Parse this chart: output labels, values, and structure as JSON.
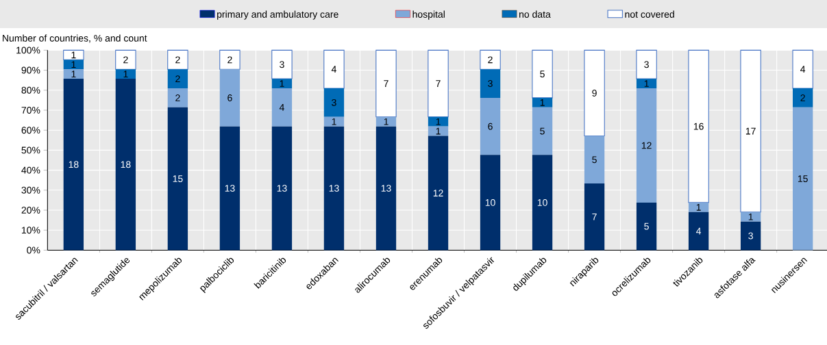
{
  "chart_data": {
    "type": "bar",
    "stacked": true,
    "ylabel": "Number of countries, %  and count",
    "categories": [
      "sacubitril / valsartan",
      "semaglutide",
      "mepolizumab",
      "palbociclib",
      "baricitinib",
      "edoxaban",
      "alirocumab",
      "erenumab",
      "sofosbuvir / velpatasvir",
      "dupilumab",
      "niraparib",
      "ocrelizumab",
      "tivozanib",
      "asfotase alfa",
      "nusinersen"
    ],
    "series": [
      {
        "name": "primary and ambulatory care",
        "color": "#002f6c",
        "values": [
          85.71,
          85.71,
          71.43,
          61.9,
          61.9,
          61.9,
          61.9,
          57.14,
          47.62,
          47.62,
          33.33,
          23.81,
          19.05,
          14.29,
          0
        ]
      },
      {
        "name": "hospital",
        "color": "#7fa8d9",
        "values": [
          4.76,
          0,
          9.52,
          28.57,
          19.05,
          4.76,
          4.76,
          4.76,
          28.57,
          23.81,
          23.81,
          57.14,
          4.76,
          4.76,
          71.43
        ]
      },
      {
        "name": "no data",
        "color": "#006bb6",
        "values": [
          4.76,
          4.76,
          9.52,
          0,
          4.76,
          14.29,
          0,
          4.76,
          14.29,
          4.76,
          0,
          4.76,
          0,
          0,
          9.52
        ]
      },
      {
        "name": "not covered",
        "color": "#ffffff",
        "values": [
          4.76,
          9.52,
          9.52,
          9.52,
          14.29,
          19.05,
          33.33,
          33.33,
          9.52,
          23.81,
          42.86,
          14.29,
          76.19,
          80.95,
          19.05
        ]
      }
    ],
    "ylim": [
      0,
      100
    ],
    "yticks": [
      {
        "value": 0,
        "label": "0%"
      },
      {
        "value": 10,
        "label": "10%"
      },
      {
        "value": 20,
        "label": "20%"
      },
      {
        "value": 30,
        "label": "30%"
      },
      {
        "value": 40,
        "label": "40%"
      },
      {
        "value": 50,
        "label": "50%"
      },
      {
        "value": 60,
        "label": "60%"
      },
      {
        "value": 70,
        "label": "70%"
      },
      {
        "value": 80,
        "label": "80%"
      },
      {
        "value": 90,
        "label": "90%"
      },
      {
        "value": 100,
        "label": "100%"
      }
    ],
    "annotations": [
      "18",
      "1",
      "1",
      "1",
      "18",
      "1",
      "2",
      "15",
      "2",
      "2",
      "2",
      "13",
      "6",
      "2",
      "13",
      "4",
      "1",
      "3",
      "13",
      "1",
      "3",
      "4",
      "13",
      "1",
      "7",
      "12",
      "1",
      "1",
      "7",
      "10",
      "6",
      "3",
      "2",
      "10",
      "5",
      "1",
      "5",
      "7",
      "5",
      "9",
      "5",
      "12",
      "1",
      "3",
      "4",
      "1",
      "16",
      "3",
      "1",
      "17",
      "15",
      "2",
      "4"
    ],
    "grid": true,
    "legend": "top"
  }
}
